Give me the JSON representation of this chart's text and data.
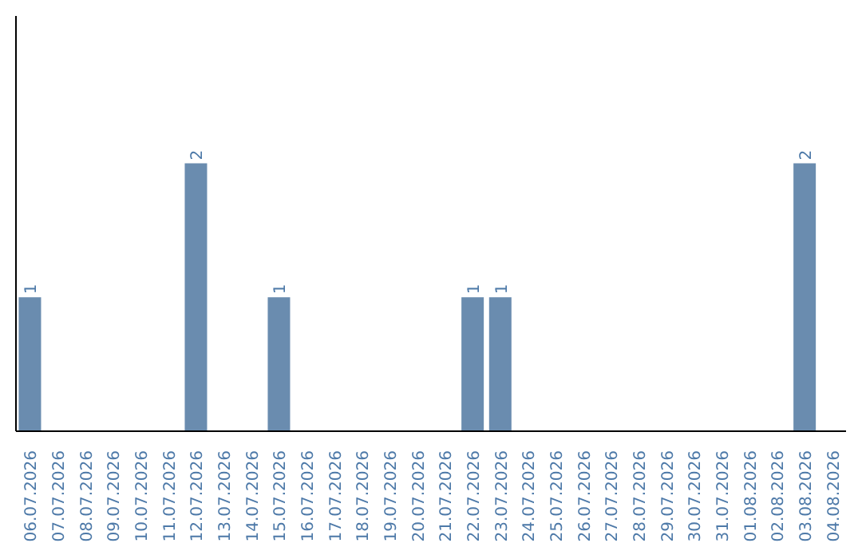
{
  "chart_data": {
    "type": "bar",
    "categories": [
      "06.07.2026",
      "07.07.2026",
      "08.07.2026",
      "09.07.2026",
      "10.07.2026",
      "11.07.2026",
      "12.07.2026",
      "13.07.2026",
      "14.07.2026",
      "15.07.2026",
      "16.07.2026",
      "17.07.2026",
      "18.07.2026",
      "19.07.2026",
      "20.07.2026",
      "21.07.2026",
      "22.07.2026",
      "23.07.2026",
      "24.07.2026",
      "25.07.2026",
      "26.07.2026",
      "27.07.2026",
      "28.07.2026",
      "29.07.2026",
      "30.07.2026",
      "31.07.2026",
      "01.08.2026",
      "02.08.2026",
      "03.08.2026",
      "04.08.2026"
    ],
    "values": [
      1,
      0,
      0,
      0,
      0,
      0,
      2,
      0,
      0,
      1,
      0,
      0,
      0,
      0,
      0,
      0,
      1,
      1,
      0,
      0,
      0,
      0,
      0,
      0,
      0,
      0,
      0,
      0,
      2,
      0
    ],
    "value_labels": [
      "1",
      null,
      null,
      null,
      null,
      null,
      "2",
      null,
      null,
      "1",
      null,
      null,
      null,
      null,
      null,
      null,
      "1",
      "1",
      null,
      null,
      null,
      null,
      null,
      null,
      null,
      null,
      null,
      null,
      "2",
      null
    ],
    "color": "#6a8caf",
    "ylim": [
      0,
      3.1
    ],
    "tick_labels": "x",
    "grid": false,
    "legend": false
  }
}
